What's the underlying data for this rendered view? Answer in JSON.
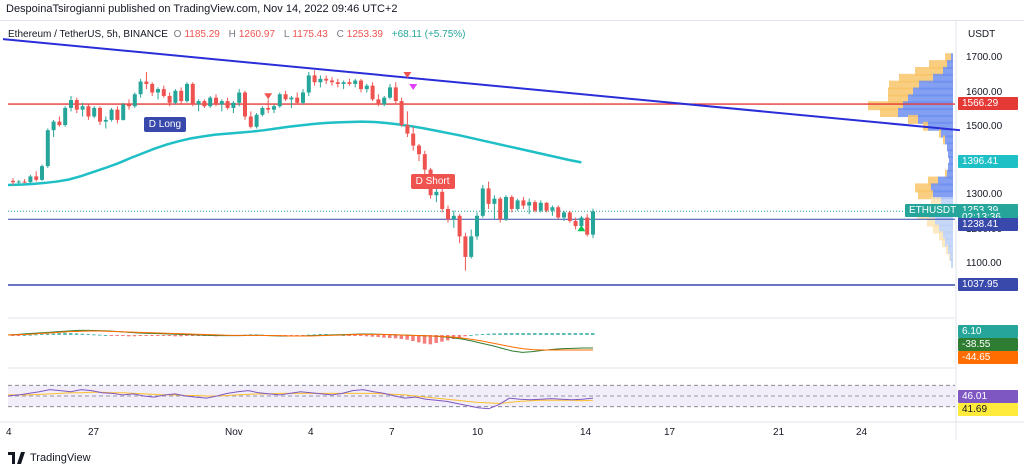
{
  "header": {
    "publisher": "DespoinaTsirogianni published on TradingView.com, Nov 14, 2022 09:46 UTC+2",
    "symbol": "Ethereum / TetherUS, 5h, BINANCE",
    "open_label": "O",
    "open": "1185.29",
    "high_label": "H",
    "high": "1260.97",
    "low_label": "L",
    "low": "1175.43",
    "close_label": "C",
    "close": "1253.39",
    "change": "+68.11 (+5.75%)",
    "currency": "USDT"
  },
  "footer": {
    "brand": "TradingView"
  },
  "colors": {
    "up": "#26a69a",
    "down": "#ef5350",
    "trendline": "#2a2ed8",
    "ma": "#1fbfc6",
    "resistance": "#e53935",
    "support": "#3949ab"
  },
  "chart_data": {
    "type": "candlestick",
    "symbol": "ETHUSDT",
    "timeframe": "5h",
    "ylim": [
      1000,
      1730
    ],
    "y_ticks": [
      "1700.00",
      "1600.00",
      "1500.00",
      "1400.00",
      "1300.00",
      "1200.00",
      "1100.00"
    ],
    "x_ticks": [
      "4",
      "27",
      "Nov",
      "4",
      "7",
      "10",
      "14",
      "17",
      "21",
      "24"
    ],
    "candles": [
      [
        1342,
        1350,
        1330,
        1338
      ],
      [
        1338,
        1345,
        1333,
        1340
      ],
      [
        1340,
        1347,
        1335,
        1338
      ],
      [
        1338,
        1360,
        1336,
        1355
      ],
      [
        1355,
        1370,
        1340,
        1345
      ],
      [
        1345,
        1390,
        1342,
        1385
      ],
      [
        1385,
        1495,
        1380,
        1490
      ],
      [
        1490,
        1520,
        1470,
        1515
      ],
      [
        1515,
        1530,
        1500,
        1505
      ],
      [
        1505,
        1560,
        1500,
        1555
      ],
      [
        1555,
        1590,
        1545,
        1578
      ],
      [
        1578,
        1585,
        1540,
        1550
      ],
      [
        1550,
        1570,
        1530,
        1560
      ],
      [
        1560,
        1565,
        1520,
        1530
      ],
      [
        1530,
        1560,
        1525,
        1555
      ],
      [
        1555,
        1560,
        1505,
        1515
      ],
      [
        1515,
        1530,
        1495,
        1520
      ],
      [
        1520,
        1555,
        1515,
        1550
      ],
      [
        1550,
        1560,
        1510,
        1520
      ],
      [
        1520,
        1570,
        1518,
        1565
      ],
      [
        1565,
        1580,
        1550,
        1560
      ],
      [
        1560,
        1600,
        1555,
        1595
      ],
      [
        1595,
        1640,
        1585,
        1632
      ],
      [
        1632,
        1660,
        1610,
        1625
      ],
      [
        1625,
        1630,
        1590,
        1600
      ],
      [
        1600,
        1615,
        1580,
        1610
      ],
      [
        1610,
        1620,
        1585,
        1590
      ],
      [
        1590,
        1600,
        1560,
        1570
      ],
      [
        1570,
        1610,
        1565,
        1605
      ],
      [
        1605,
        1615,
        1565,
        1575
      ],
      [
        1575,
        1630,
        1570,
        1625
      ],
      [
        1625,
        1630,
        1560,
        1565
      ],
      [
        1565,
        1580,
        1545,
        1575
      ],
      [
        1575,
        1580,
        1555,
        1560
      ],
      [
        1560,
        1590,
        1555,
        1585
      ],
      [
        1585,
        1595,
        1560,
        1565
      ],
      [
        1565,
        1580,
        1545,
        1575
      ],
      [
        1575,
        1585,
        1550,
        1555
      ],
      [
        1555,
        1575,
        1540,
        1570
      ],
      [
        1570,
        1610,
        1560,
        1600
      ],
      [
        1600,
        1605,
        1520,
        1530
      ],
      [
        1530,
        1545,
        1495,
        1500
      ],
      [
        1500,
        1540,
        1495,
        1535
      ],
      [
        1535,
        1560,
        1530,
        1555
      ],
      [
        1555,
        1580,
        1540,
        1550
      ],
      [
        1550,
        1565,
        1540,
        1560
      ],
      [
        1560,
        1600,
        1555,
        1595
      ],
      [
        1595,
        1605,
        1575,
        1580
      ],
      [
        1580,
        1590,
        1555,
        1585
      ],
      [
        1585,
        1600,
        1565,
        1570
      ],
      [
        1570,
        1610,
        1565,
        1600
      ],
      [
        1600,
        1660,
        1590,
        1650
      ],
      [
        1650,
        1665,
        1620,
        1630
      ],
      [
        1630,
        1650,
        1615,
        1640
      ],
      [
        1640,
        1650,
        1625,
        1635
      ],
      [
        1635,
        1645,
        1620,
        1630
      ],
      [
        1630,
        1640,
        1615,
        1625
      ],
      [
        1625,
        1635,
        1610,
        1630
      ],
      [
        1630,
        1640,
        1620,
        1625
      ],
      [
        1625,
        1640,
        1615,
        1635
      ],
      [
        1635,
        1640,
        1600,
        1610
      ],
      [
        1610,
        1625,
        1600,
        1620
      ],
      [
        1620,
        1630,
        1575,
        1580
      ],
      [
        1580,
        1595,
        1560,
        1565
      ],
      [
        1565,
        1590,
        1560,
        1585
      ],
      [
        1585,
        1625,
        1580,
        1615
      ],
      [
        1615,
        1630,
        1565,
        1575
      ],
      [
        1575,
        1585,
        1500,
        1505
      ],
      [
        1505,
        1545,
        1470,
        1480
      ],
      [
        1480,
        1500,
        1430,
        1445
      ],
      [
        1445,
        1450,
        1400,
        1420
      ],
      [
        1420,
        1430,
        1360,
        1375
      ],
      [
        1375,
        1380,
        1290,
        1300
      ],
      [
        1300,
        1340,
        1280,
        1310
      ],
      [
        1310,
        1320,
        1250,
        1260
      ],
      [
        1260,
        1270,
        1220,
        1230
      ],
      [
        1230,
        1255,
        1205,
        1240
      ],
      [
        1240,
        1245,
        1160,
        1180
      ],
      [
        1180,
        1190,
        1080,
        1120
      ],
      [
        1120,
        1200,
        1115,
        1180
      ],
      [
        1180,
        1250,
        1170,
        1240
      ],
      [
        1240,
        1330,
        1235,
        1320
      ],
      [
        1320,
        1340,
        1260,
        1275
      ],
      [
        1275,
        1300,
        1230,
        1290
      ],
      [
        1290,
        1295,
        1220,
        1230
      ],
      [
        1230,
        1300,
        1225,
        1295
      ],
      [
        1295,
        1300,
        1250,
        1260
      ],
      [
        1260,
        1290,
        1255,
        1285
      ],
      [
        1285,
        1295,
        1260,
        1270
      ],
      [
        1270,
        1290,
        1245,
        1280
      ],
      [
        1280,
        1285,
        1250,
        1255
      ],
      [
        1255,
        1285,
        1250,
        1278
      ],
      [
        1278,
        1280,
        1250,
        1255
      ],
      [
        1255,
        1270,
        1240,
        1265
      ],
      [
        1265,
        1270,
        1230,
        1235
      ],
      [
        1235,
        1255,
        1225,
        1250
      ],
      [
        1250,
        1255,
        1220,
        1225
      ],
      [
        1225,
        1235,
        1200,
        1210
      ],
      [
        1210,
        1240,
        1200,
        1235
      ],
      [
        1235,
        1245,
        1180,
        1185
      ],
      [
        1185,
        1261,
        1175,
        1253
      ]
    ],
    "trendline": {
      "from": [
        0,
        1756
      ],
      "to": [
        148,
        1490
      ]
    },
    "moving_average": [
      1330,
      1331,
      1333,
      1336,
      1340,
      1346,
      1356,
      1368,
      1380,
      1393,
      1408,
      1422,
      1436,
      1448,
      1458,
      1466,
      1472,
      1477,
      1480,
      1483,
      1486,
      1490,
      1495,
      1500,
      1504,
      1508,
      1511,
      1513,
      1514,
      1515,
      1514,
      1511,
      1507,
      1502,
      1496,
      1489,
      1482,
      1475,
      1467,
      1459,
      1451,
      1443,
      1435,
      1427,
      1419,
      1411,
      1403,
      1396
    ],
    "horizontal_lines": [
      {
        "label": "resistance",
        "price": 1566.29,
        "color": "#e53935"
      },
      {
        "label": "support",
        "price": 1037.95,
        "color": "#3949ab"
      }
    ],
    "price_tags": [
      {
        "text": "1566.29",
        "price": 1566.29,
        "color": "#e53935"
      },
      {
        "text": "1396.41",
        "price": 1396.41,
        "color": "#1fbfc6"
      },
      {
        "text": "1253.39",
        "price": 1253.39,
        "color": "#26a69a"
      },
      {
        "text": "02:13:36",
        "price": 1234,
        "color": "#26a69a"
      },
      {
        "text": "1238.41",
        "price": 1212,
        "color": "#3949ab"
      },
      {
        "text": "1037.95",
        "price": 1037.95,
        "color": "#3949ab"
      }
    ],
    "symbol_tag": "ETHUSDT",
    "annotations": [
      {
        "text": "D Long",
        "color": "#3949ab",
        "candle": 26,
        "price": 1505
      },
      {
        "text": "D Short",
        "color": "#ef5350",
        "candle": 72,
        "price": 1340
      }
    ],
    "volume_profile": [
      [
        1700,
        0.06,
        0.02
      ],
      [
        1680,
        0.18,
        0.06
      ],
      [
        1660,
        0.28,
        0.1
      ],
      [
        1640,
        0.34,
        0.2
      ],
      [
        1620,
        0.3,
        0.34
      ],
      [
        1600,
        0.25,
        0.4
      ],
      [
        1580,
        0.2,
        0.45
      ],
      [
        1560,
        0.35,
        0.5
      ],
      [
        1540,
        0.18,
        0.55
      ],
      [
        1520,
        0.1,
        0.35
      ],
      [
        1500,
        0.05,
        0.25
      ],
      [
        1480,
        0.02,
        0.12
      ],
      [
        1460,
        0.02,
        0.08
      ],
      [
        1440,
        0.0,
        0.06
      ],
      [
        1420,
        0.0,
        0.05
      ],
      [
        1400,
        0.0,
        0.04
      ],
      [
        1380,
        0.0,
        0.05
      ],
      [
        1360,
        0.02,
        0.06
      ],
      [
        1340,
        0.1,
        0.15
      ],
      [
        1320,
        0.16,
        0.22
      ],
      [
        1300,
        0.15,
        0.2
      ],
      [
        1280,
        0.1,
        0.12
      ],
      [
        1260,
        0.14,
        0.2
      ],
      [
        1240,
        0.12,
        0.24
      ],
      [
        1220,
        0.08,
        0.18
      ],
      [
        1200,
        0.06,
        0.14
      ],
      [
        1180,
        0.04,
        0.1
      ],
      [
        1160,
        0.03,
        0.08
      ],
      [
        1140,
        0.02,
        0.05
      ],
      [
        1120,
        0.01,
        0.03
      ],
      [
        1100,
        0.0,
        0.02
      ]
    ],
    "macd": {
      "readouts": [
        {
          "text": "6.10",
          "color": "#26a69a"
        },
        {
          "text": "-38.55",
          "color": "#2e7d32"
        },
        {
          "text": "-44.65",
          "color": "#ff6d00"
        }
      ],
      "ylim": [
        -60,
        30
      ],
      "histogram": [
        -2,
        -1,
        0,
        1,
        2,
        3,
        4,
        5,
        6,
        7,
        6,
        5,
        4,
        3,
        2,
        1,
        0,
        -1,
        -2,
        -3,
        -4,
        -4,
        -3,
        -2,
        -1,
        -2,
        -3,
        -3,
        -4,
        -4,
        -3,
        -2,
        -2,
        -3,
        -3,
        -4,
        -3,
        -2,
        -1,
        0,
        1,
        2,
        2,
        1,
        0,
        -1,
        -2,
        -3,
        -3,
        -2,
        -1,
        1,
        2,
        3,
        3,
        2,
        1,
        0,
        -1,
        -2,
        -3,
        -4,
        -5,
        -6,
        -8,
        -9,
        -10,
        -12,
        -14,
        -18,
        -22,
        -26,
        -28,
        -24,
        -20,
        -16,
        -12,
        -8,
        -4,
        0,
        2,
        3,
        4,
        5,
        5,
        6,
        6,
        6,
        6,
        6,
        6,
        6,
        6,
        6,
        6,
        6,
        6,
        6,
        6,
        6,
        6
      ],
      "macd_line": [
        0,
        2,
        4,
        6,
        8,
        10,
        12,
        14,
        14,
        13,
        12,
        10,
        8,
        6,
        5,
        4,
        3,
        2,
        1,
        0,
        -1,
        -2,
        -2,
        -2,
        -1,
        -1,
        -2,
        -3,
        -3,
        -3,
        -2,
        -1,
        0,
        1,
        2,
        3,
        3,
        2,
        1,
        0,
        -1,
        -2,
        -3,
        -5,
        -8,
        -12,
        -18,
        -25,
        -32,
        -40,
        -48,
        -52,
        -50,
        -46,
        -43,
        -41,
        -40,
        -39,
        -39
      ],
      "signal_line": [
        0,
        1,
        2,
        4,
        6,
        8,
        10,
        11,
        12,
        12,
        11,
        10,
        9,
        8,
        7,
        6,
        5,
        4,
        3,
        2,
        1,
        0,
        -1,
        -1,
        -1,
        -1,
        -2,
        -2,
        -3,
        -3,
        -3,
        -2,
        -1,
        0,
        1,
        2,
        2,
        2,
        1,
        0,
        -1,
        -2,
        -3,
        -4,
        -6,
        -9,
        -13,
        -18,
        -24,
        -30,
        -36,
        -41,
        -44,
        -45,
        -45,
        -45,
        -45,
        -45,
        -45
      ]
    },
    "rsi": {
      "readouts": [
        {
          "text": "46.01",
          "color": "#7e57c2"
        },
        {
          "text": "41.69",
          "color": "#ffeb3b"
        }
      ],
      "ylim": [
        20,
        80
      ],
      "bands": [
        70,
        50,
        30
      ],
      "rsi_line": [
        50,
        52,
        55,
        58,
        62,
        60,
        58,
        62,
        60,
        56,
        55,
        52,
        54,
        50,
        48,
        52,
        54,
        50,
        48,
        46,
        50,
        55,
        58,
        60,
        56,
        54,
        52,
        55,
        58,
        56,
        54,
        52,
        55,
        60,
        62,
        58,
        55,
        50,
        46,
        48,
        44,
        42,
        40,
        36,
        32,
        28,
        26,
        34,
        46,
        44,
        43,
        44,
        45,
        44,
        43,
        44,
        46
      ],
      "signal_line": [
        52,
        52,
        52,
        53,
        54,
        55,
        56,
        56,
        57,
        57,
        56,
        56,
        55,
        54,
        53,
        52,
        52,
        51,
        51,
        50,
        50,
        51,
        52,
        53,
        54,
        54,
        55,
        55,
        55,
        55,
        55,
        55,
        55,
        55,
        55,
        55,
        54,
        53,
        52,
        50,
        48,
        46,
        44,
        42,
        40,
        38,
        37,
        36,
        38,
        40,
        41,
        42,
        42,
        42,
        42,
        41,
        42
      ]
    }
  }
}
